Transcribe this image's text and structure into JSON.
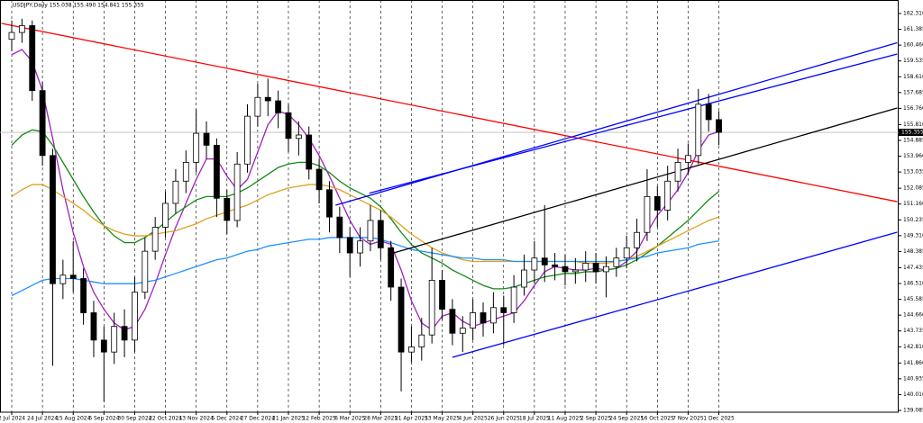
{
  "chart_data": {
    "type": "candlestick",
    "title": "USDJPY,Daily  155.038 155.490 154.841 155.355",
    "categories": [
      "2 Jul 2024",
      null,
      null,
      "24 Jul 2024",
      null,
      null,
      "15 Aug 2024",
      null,
      null,
      "6 Sep 2024",
      null,
      null,
      "30 Sep 2024",
      null,
      null,
      "22 Oct 2024",
      null,
      null,
      "13 Nov 2024",
      null,
      null,
      "5 Dec 2024",
      null,
      null,
      "27 Dec 2024",
      null,
      null,
      "21 Jan 2025",
      null,
      null,
      "12 Feb 2025",
      null,
      null,
      "6 Mar 2025",
      null,
      null,
      "28 Mar 2025",
      null,
      null,
      "21 Apr 2025",
      null,
      null,
      "13 May 2025",
      null,
      null,
      "4 Jun 2025",
      null,
      null,
      "26 Jun 2025",
      null,
      null,
      "18 Jul 2025",
      null,
      null,
      "11 Aug 2025",
      null,
      null,
      "2 Sep 2025",
      null,
      null,
      "24 Sep 2025",
      null,
      null,
      "16 Oct 2025",
      null,
      null,
      "7 Nov 2025",
      null,
      null,
      "1 Dec 2025"
    ],
    "open": [
      160.8,
      161.2,
      161.6,
      157.8,
      154.0,
      146.5,
      147.0,
      146.8,
      144.8,
      143.2,
      142.5,
      144.0,
      143.2,
      146.0,
      148.4,
      149.8,
      151.2,
      152.5,
      153.6,
      155.3,
      154.6,
      151.5,
      150.2,
      153.5,
      156.3,
      157.4,
      157.2,
      156.5,
      155.0,
      155.2,
      153.2,
      152.0,
      150.4,
      149.2,
      148.3,
      149.0,
      150.2,
      148.6,
      146.3,
      142.5,
      142.8,
      143.5,
      146.7,
      145.0,
      143.6,
      143.9,
      144.8,
      144.2,
      145.1,
      144.8,
      146.3,
      147.3,
      148.0,
      147.6,
      147.5,
      147.2,
      147.3,
      147.7,
      147.2,
      147.5,
      148.0,
      148.6,
      149.5,
      151.6,
      150.8,
      152.5,
      153.6,
      154.0,
      157.0,
      156.1
    ],
    "high": [
      161.9,
      162.0,
      161.9,
      158.3,
      154.4,
      147.9,
      149.0,
      147.4,
      145.5,
      144.0,
      144.8,
      145.0,
      146.9,
      149.2,
      150.4,
      151.9,
      153.2,
      154.3,
      156.7,
      156.0,
      155.0,
      152.0,
      154.2,
      157.0,
      158.2,
      158.5,
      157.8,
      157.0,
      156.0,
      155.7,
      153.8,
      152.5,
      151.0,
      149.8,
      149.8,
      151.1,
      150.8,
      149.0,
      146.8,
      144.0,
      144.5,
      148.6,
      147.3,
      145.6,
      144.6,
      145.6,
      145.4,
      146.0,
      145.8,
      147.0,
      148.2,
      149.0,
      151.1,
      148.3,
      148.2,
      148.0,
      148.4,
      148.3,
      148.1,
      148.6,
      149.3,
      150.3,
      153.2,
      152.2,
      153.4,
      154.4,
      154.7,
      157.9,
      157.6,
      156.6
    ],
    "low": [
      160.1,
      160.6,
      157.2,
      153.4,
      141.7,
      145.6,
      146.0,
      144.1,
      142.2,
      139.6,
      141.8,
      142.2,
      142.5,
      145.6,
      147.9,
      149.2,
      150.6,
      151.8,
      153.0,
      153.8,
      150.4,
      149.4,
      149.8,
      153.0,
      155.7,
      156.3,
      155.6,
      154.2,
      154.0,
      152.6,
      151.2,
      149.5,
      148.3,
      146.9,
      147.5,
      148.4,
      147.9,
      145.5,
      140.2,
      141.9,
      142.0,
      143.0,
      144.4,
      142.9,
      142.5,
      143.2,
      143.4,
      143.6,
      142.9,
      144.2,
      145.8,
      146.5,
      146.6,
      146.7,
      146.4,
      146.5,
      146.6,
      146.5,
      145.7,
      146.9,
      147.4,
      147.8,
      149.0,
      149.8,
      150.2,
      151.9,
      152.9,
      153.5,
      155.4,
      154.6
    ],
    "close": [
      161.2,
      161.6,
      157.8,
      154.0,
      146.5,
      147.0,
      146.8,
      144.8,
      143.2,
      142.5,
      144.0,
      143.2,
      146.0,
      148.4,
      149.8,
      151.2,
      152.5,
      153.6,
      155.3,
      154.6,
      151.5,
      150.2,
      153.5,
      156.3,
      157.4,
      157.2,
      156.5,
      155.0,
      155.2,
      153.2,
      152.0,
      150.4,
      149.2,
      148.3,
      149.0,
      150.2,
      148.6,
      146.3,
      142.5,
      142.8,
      143.5,
      146.7,
      145.0,
      143.6,
      143.9,
      144.8,
      144.2,
      145.1,
      144.8,
      146.3,
      147.3,
      148.0,
      147.6,
      147.5,
      147.2,
      147.3,
      147.7,
      147.2,
      147.5,
      148.0,
      148.6,
      149.5,
      151.6,
      150.8,
      152.5,
      153.6,
      154.0,
      157.0,
      156.1,
      155.355
    ],
    "series": [
      {
        "color": "#a020c0",
        "values": [
          159.9,
          160.2,
          159.5,
          157.8,
          155.0,
          152.0,
          149.5,
          147.5,
          146.0,
          145.0,
          144.2,
          143.8,
          144.0,
          145.0,
          146.5,
          148.2,
          149.8,
          151.2,
          152.6,
          153.8,
          153.8,
          152.8,
          152.0,
          152.6,
          154.2,
          155.8,
          156.6,
          156.4,
          155.8,
          155.0,
          154.0,
          152.8,
          151.5,
          150.2,
          149.2,
          148.8,
          149.0,
          148.8,
          147.3,
          145.5,
          144.2,
          143.8,
          144.6,
          144.8,
          144.3,
          144.0,
          144.2,
          144.4,
          144.6,
          144.8,
          145.5,
          146.4,
          147.2,
          147.5,
          147.4,
          147.3,
          147.3,
          147.4,
          147.3,
          147.4,
          147.8,
          148.4,
          149.5,
          150.5,
          151.2,
          152.0,
          153.0,
          154.3,
          155.2,
          155.4
        ]
      },
      {
        "color": "#138a13",
        "values": [
          154.6,
          155.2,
          155.5,
          155.4,
          154.6,
          153.6,
          152.6,
          151.6,
          150.7,
          149.9,
          149.3,
          148.9,
          148.9,
          149.2,
          149.6,
          150.1,
          150.6,
          151.0,
          151.4,
          151.6,
          151.6,
          151.6,
          151.8,
          152.1,
          152.5,
          152.9,
          153.3,
          153.5,
          153.6,
          153.6,
          153.4,
          153.0,
          152.5,
          152.1,
          151.8,
          151.5,
          151.0,
          150.3,
          149.5,
          148.8,
          148.3,
          148.0,
          147.7,
          147.3,
          147.0,
          146.7,
          146.4,
          146.2,
          146.2,
          146.3,
          146.5,
          146.7,
          146.9,
          147.0,
          147.1,
          147.1,
          147.2,
          147.2,
          147.3,
          147.4,
          147.6,
          147.9,
          148.3,
          148.7,
          149.2,
          149.7,
          150.2,
          150.8,
          151.4,
          151.9
        ]
      },
      {
        "color": "#e0a020",
        "values": [
          151.6,
          152.0,
          152.3,
          152.3,
          152.0,
          151.6,
          151.2,
          150.8,
          150.3,
          149.9,
          149.6,
          149.4,
          149.3,
          149.3,
          149.4,
          149.5,
          149.6,
          149.8,
          150.0,
          150.3,
          150.5,
          150.7,
          150.9,
          151.1,
          151.4,
          151.7,
          151.9,
          152.1,
          152.2,
          152.3,
          152.3,
          152.2,
          152.0,
          151.7,
          151.4,
          151.1,
          150.8,
          150.4,
          149.9,
          149.4,
          149.0,
          148.6,
          148.3,
          148.1,
          147.9,
          147.8,
          147.8,
          147.8,
          147.8,
          147.8,
          147.8,
          147.8,
          147.8,
          147.8,
          147.8,
          147.8,
          147.7,
          147.7,
          147.7,
          147.8,
          147.9,
          148.1,
          148.4,
          148.7,
          149.0,
          149.3,
          149.6,
          149.9,
          150.2,
          150.4
        ]
      },
      {
        "color": "#1e90ff",
        "values": [
          145.8,
          146.1,
          146.4,
          146.7,
          146.8,
          146.8,
          146.8,
          146.7,
          146.6,
          146.5,
          146.5,
          146.5,
          146.5,
          146.6,
          146.7,
          146.9,
          147.1,
          147.3,
          147.5,
          147.7,
          147.9,
          148.0,
          148.2,
          148.4,
          148.5,
          148.7,
          148.8,
          148.9,
          149.0,
          149.1,
          149.1,
          149.2,
          149.2,
          149.2,
          149.2,
          149.2,
          149.1,
          148.9,
          148.7,
          148.5,
          148.4,
          148.3,
          148.2,
          148.1,
          148.0,
          148.0,
          147.9,
          147.9,
          147.9,
          147.8,
          147.8,
          147.8,
          147.8,
          147.8,
          147.8,
          147.8,
          147.8,
          147.8,
          147.8,
          147.8,
          147.9,
          148.0,
          148.1,
          148.3,
          148.4,
          148.5,
          148.6,
          148.8,
          148.9,
          149.0
        ]
      }
    ],
    "trendlines": [
      {
        "color": "#ff0000",
        "x": [
          -1,
          86.4
        ],
        "values": [
          161.73,
          151.3
        ]
      },
      {
        "color": "#0000ff",
        "x": [
          31.6,
          86.4
        ],
        "values": [
          151.09,
          160.6
        ]
      },
      {
        "color": "#0000ff",
        "x": [
          34.9,
          86.4
        ],
        "values": [
          151.8,
          159.94
        ]
      },
      {
        "color": "#0000ff",
        "x": [
          43,
          86.4
        ],
        "values": [
          142.19,
          149.51
        ]
      },
      {
        "color": "#000000",
        "x": [
          36.7,
          86.4
        ],
        "values": [
          148.2,
          156.78
        ]
      }
    ],
    "last_price": 155.355,
    "ylim": [
      138.98,
      163.1
    ],
    "yticks": [
      {
        "value": 162.31,
        "label": "162.310"
      },
      161.385,
      {
        "value": 160.46,
        "label": "160.460"
      },
      159.535,
      {
        "value": 158.61,
        "label": "158.610"
      },
      157.685,
      {
        "value": 156.76,
        "label": "156.760"
      },
      {
        "value": 155.81,
        "label": "155.810"
      },
      154.885,
      {
        "value": 153.96,
        "label": "153.960"
      },
      153.035,
      152.085,
      {
        "value": 151.16,
        "label": "151.160"
      },
      150.235,
      {
        "value": 149.31,
        "label": "149.310"
      },
      148.385,
      147.435,
      {
        "value": 146.51,
        "label": "146.510"
      },
      145.585,
      {
        "value": 144.66,
        "label": "144.660"
      },
      143.735,
      {
        "value": 142.81,
        "label": "142.810"
      },
      {
        "value": 141.86,
        "label": "141.860"
      },
      140.935,
      {
        "value": 140.01,
        "label": "140.010"
      },
      139.085
    ],
    "grid": true
  }
}
